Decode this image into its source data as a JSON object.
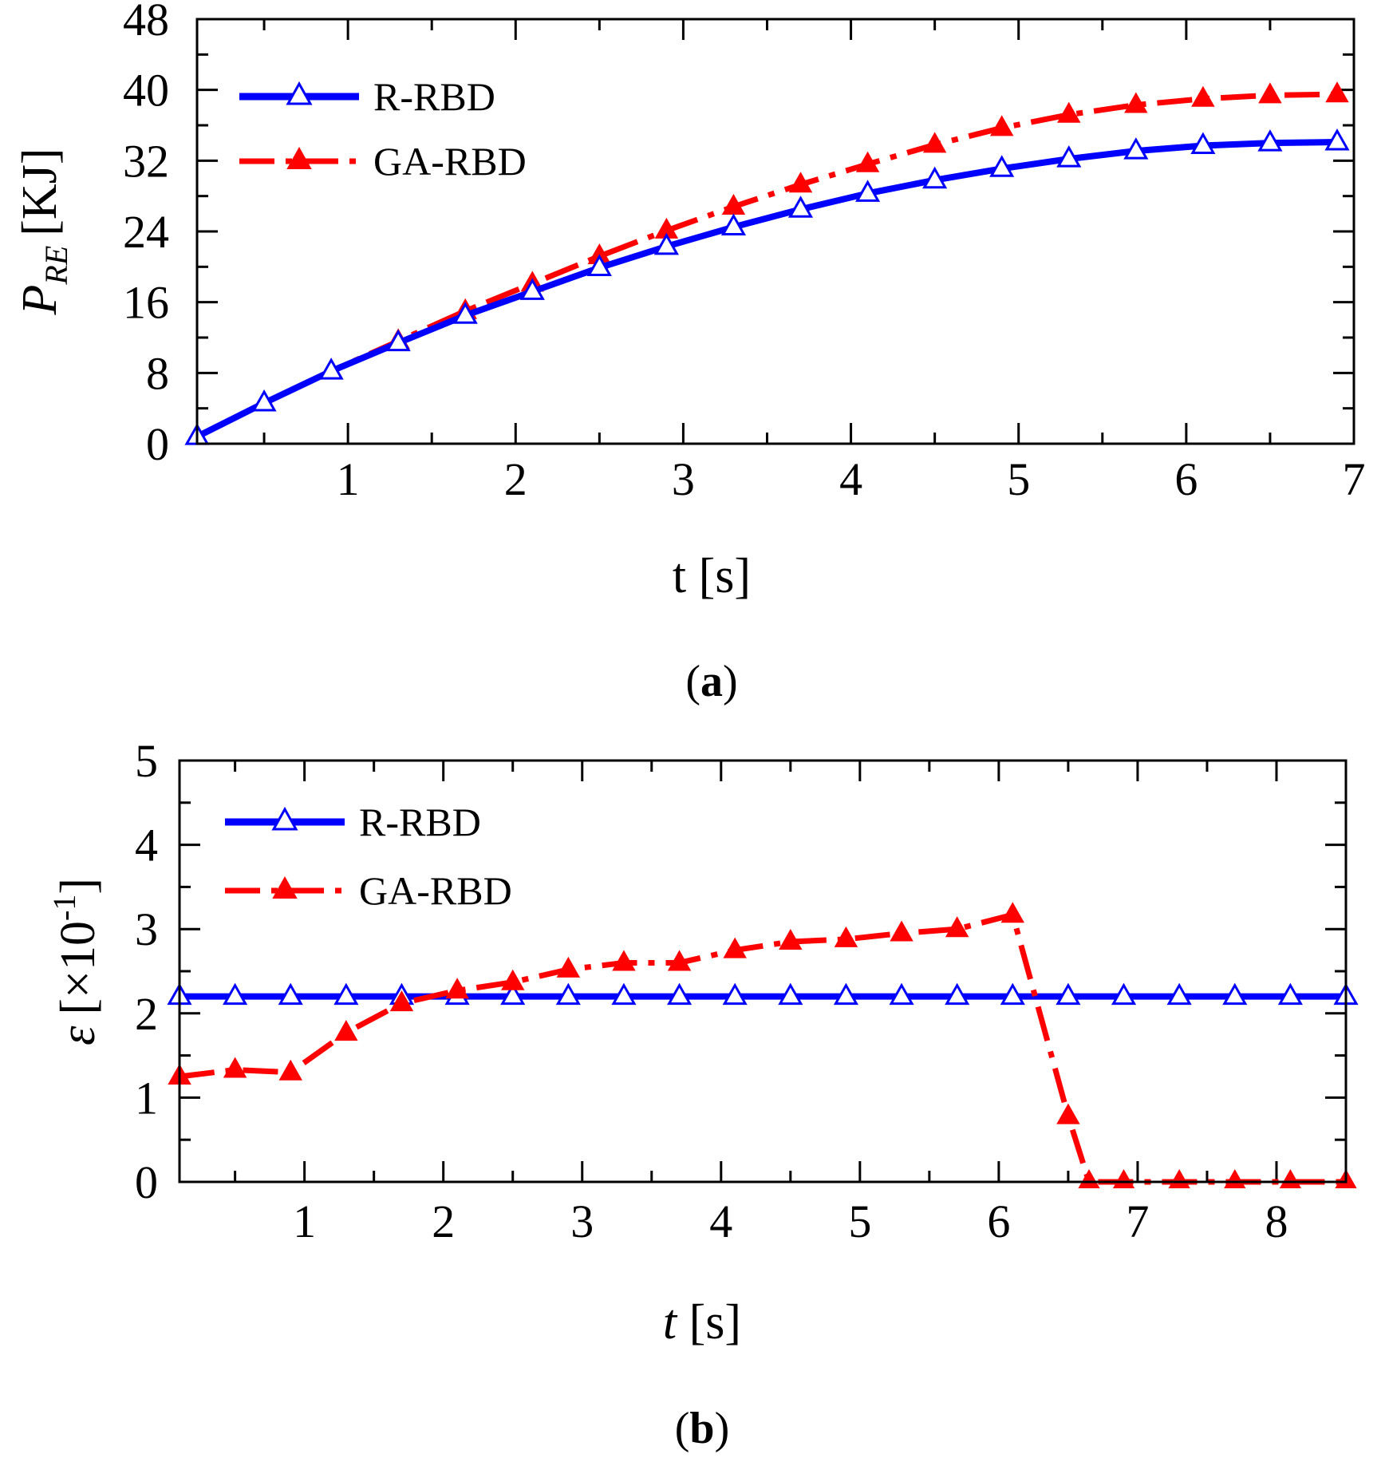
{
  "chart_data": [
    {
      "type": "line",
      "panel_label": "a",
      "xlabel": "t [s]",
      "ylabel_symbol": "P",
      "ylabel_subscript": "RE",
      "ylabel_unit": "[KJ]",
      "xlim": [
        0.1,
        7
      ],
      "ylim": [
        0,
        48
      ],
      "xticks": [
        1,
        2,
        3,
        4,
        5,
        6,
        7
      ],
      "yticks": [
        0,
        8,
        16,
        24,
        32,
        40,
        48
      ],
      "x_minor_step": 0.5,
      "y_minor_step": 4,
      "legend_position": "top-left",
      "series": [
        {
          "name": "R-RBD",
          "color": "#0000ff",
          "line_style": "solid",
          "marker": "open-triangle",
          "x": [
            0.1,
            0.5,
            0.9,
            1.3,
            1.7,
            2.1,
            2.5,
            2.9,
            3.3,
            3.7,
            4.1,
            4.5,
            4.9,
            5.3,
            5.7,
            6.1,
            6.5,
            6.9
          ],
          "y": [
            0.8,
            4.6,
            8.2,
            11.4,
            14.5,
            17.2,
            19.9,
            22.3,
            24.5,
            26.5,
            28.3,
            29.8,
            31.1,
            32.2,
            33.1,
            33.7,
            34.0,
            34.1
          ]
        },
        {
          "name": "GA-RBD",
          "color": "#ff0000",
          "line_style": "dash-dot",
          "marker": "filled-triangle",
          "x": [
            0.1,
            0.5,
            0.9,
            1.3,
            1.7,
            2.1,
            2.5,
            2.9,
            3.3,
            3.7,
            4.1,
            4.5,
            4.9,
            5.3,
            5.7,
            6.1,
            6.5,
            6.9
          ],
          "y": [
            0.8,
            4.6,
            8.2,
            11.6,
            15.0,
            18.1,
            21.2,
            24.1,
            26.8,
            29.3,
            31.6,
            33.8,
            35.7,
            37.2,
            38.3,
            39.0,
            39.4,
            39.5
          ]
        }
      ]
    },
    {
      "type": "line",
      "panel_label": "b",
      "xlabel_symbol": "t",
      "xlabel_unit": "[s]",
      "ylabel_symbol": "ε",
      "ylabel_unit": "[×10",
      "ylabel_exponent": "-1",
      "ylabel_close": "]",
      "xlim": [
        0.1,
        8.5
      ],
      "ylim": [
        0,
        5
      ],
      "xticks": [
        1,
        2,
        3,
        4,
        5,
        6,
        7,
        8
      ],
      "yticks": [
        0,
        1,
        2,
        3,
        4,
        5
      ],
      "x_minor_step": 0.5,
      "y_minor_step": 0.5,
      "legend_position": "top-left",
      "series": [
        {
          "name": "R-RBD",
          "color": "#0000ff",
          "line_style": "solid",
          "marker": "open-triangle",
          "x": [
            0.1,
            0.5,
            0.9,
            1.3,
            1.7,
            2.1,
            2.5,
            2.9,
            3.3,
            3.7,
            4.1,
            4.5,
            4.9,
            5.3,
            5.7,
            6.1,
            6.5,
            6.9,
            7.3,
            7.7,
            8.1,
            8.5
          ],
          "y": [
            2.2,
            2.2,
            2.2,
            2.2,
            2.2,
            2.2,
            2.2,
            2.2,
            2.2,
            2.2,
            2.2,
            2.2,
            2.2,
            2.2,
            2.2,
            2.2,
            2.2,
            2.2,
            2.2,
            2.2,
            2.2,
            2.2
          ]
        },
        {
          "name": "GA-RBD",
          "color": "#ff0000",
          "line_style": "dash-dot",
          "marker": "filled-triangle",
          "x": [
            0.1,
            0.5,
            0.9,
            1.3,
            1.7,
            2.1,
            2.5,
            2.9,
            3.3,
            3.7,
            4.1,
            4.5,
            4.9,
            5.3,
            5.7,
            6.1,
            6.5,
            6.65,
            6.9,
            7.3,
            7.7,
            8.1,
            8.5
          ],
          "y": [
            1.25,
            1.33,
            1.3,
            1.77,
            2.12,
            2.27,
            2.37,
            2.52,
            2.6,
            2.6,
            2.75,
            2.85,
            2.88,
            2.95,
            3.0,
            3.17,
            0.78,
            0.0,
            0.0,
            0.0,
            0.0,
            0.0,
            0.0
          ]
        }
      ]
    }
  ]
}
